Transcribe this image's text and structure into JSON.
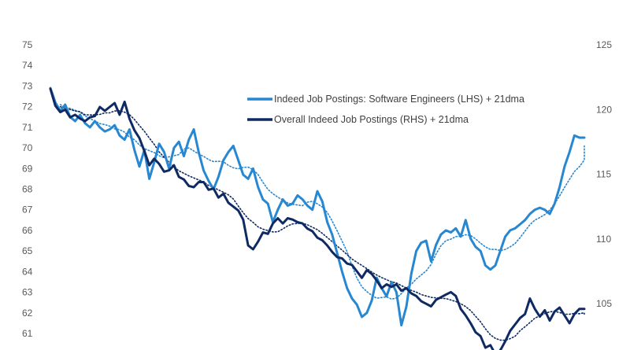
{
  "chart_data": {
    "type": "line",
    "title": "",
    "xlabel": "",
    "ylabel": "",
    "y_left": {
      "lim": [
        61,
        75
      ],
      "ticks": [
        61,
        62,
        63,
        64,
        65,
        66,
        67,
        68,
        69,
        70,
        71,
        72,
        73,
        74,
        75
      ]
    },
    "y_right": {
      "lim": [
        101,
        125
      ],
      "ticks": [
        105,
        110,
        115,
        120,
        125
      ]
    },
    "grid": false,
    "legend_position": "top-center",
    "x_count": 180,
    "series": [
      {
        "name": "Indeed Job Postings: Software Engineers (LHS) + 21dma",
        "axis": "left",
        "color": "#2787d0",
        "points": [
          [
            0,
            72.9
          ],
          [
            2,
            72.2
          ],
          [
            4,
            71.8
          ],
          [
            6,
            72.1
          ],
          [
            8,
            71.5
          ],
          [
            10,
            71.3
          ],
          [
            12,
            71.6
          ],
          [
            14,
            71.2
          ],
          [
            16,
            71.0
          ],
          [
            18,
            71.3
          ],
          [
            20,
            71.0
          ],
          [
            22,
            70.8
          ],
          [
            24,
            70.9
          ],
          [
            26,
            71.1
          ],
          [
            28,
            70.6
          ],
          [
            30,
            70.4
          ],
          [
            32,
            70.9
          ],
          [
            34,
            69.9
          ],
          [
            36,
            69.1
          ],
          [
            38,
            69.9
          ],
          [
            40,
            68.5
          ],
          [
            42,
            69.3
          ],
          [
            44,
            70.2
          ],
          [
            46,
            69.8
          ],
          [
            48,
            69.0
          ],
          [
            50,
            70.0
          ],
          [
            52,
            70.3
          ],
          [
            54,
            69.6
          ],
          [
            56,
            70.4
          ],
          [
            58,
            70.9
          ],
          [
            60,
            69.8
          ],
          [
            62,
            68.9
          ],
          [
            64,
            68.4
          ],
          [
            66,
            68.0
          ],
          [
            68,
            68.6
          ],
          [
            70,
            69.4
          ],
          [
            72,
            69.8
          ],
          [
            74,
            70.1
          ],
          [
            76,
            69.4
          ],
          [
            78,
            68.7
          ],
          [
            80,
            68.5
          ],
          [
            82,
            69.0
          ],
          [
            84,
            68.1
          ],
          [
            86,
            67.5
          ],
          [
            88,
            67.3
          ],
          [
            90,
            66.4
          ],
          [
            92,
            67.0
          ],
          [
            94,
            67.5
          ],
          [
            96,
            67.2
          ],
          [
            98,
            67.3
          ],
          [
            100,
            67.7
          ],
          [
            102,
            67.5
          ],
          [
            104,
            67.2
          ],
          [
            106,
            67.0
          ],
          [
            108,
            67.9
          ],
          [
            110,
            67.4
          ],
          [
            112,
            66.4
          ],
          [
            114,
            65.8
          ],
          [
            116,
            64.9
          ],
          [
            118,
            64.0
          ],
          [
            120,
            63.2
          ],
          [
            122,
            62.7
          ],
          [
            124,
            62.4
          ],
          [
            126,
            61.8
          ],
          [
            128,
            62.0
          ],
          [
            130,
            62.6
          ],
          [
            132,
            63.7
          ],
          [
            134,
            63.2
          ],
          [
            136,
            62.8
          ],
          [
            138,
            63.5
          ],
          [
            140,
            63.0
          ],
          [
            142,
            61.4
          ],
          [
            144,
            62.3
          ],
          [
            146,
            63.9
          ],
          [
            148,
            65.0
          ],
          [
            150,
            65.4
          ],
          [
            152,
            65.5
          ],
          [
            154,
            64.5
          ],
          [
            156,
            65.3
          ],
          [
            158,
            65.8
          ],
          [
            160,
            66.0
          ],
          [
            162,
            65.9
          ],
          [
            164,
            66.1
          ],
          [
            166,
            65.7
          ],
          [
            168,
            66.5
          ],
          [
            170,
            65.6
          ],
          [
            172,
            65.2
          ],
          [
            174,
            65.0
          ],
          [
            176,
            64.3
          ],
          [
            178,
            64.1
          ],
          [
            180,
            64.3
          ],
          [
            182,
            65.0
          ],
          [
            184,
            65.7
          ],
          [
            186,
            66.0
          ],
          [
            188,
            66.1
          ],
          [
            190,
            66.3
          ],
          [
            192,
            66.5
          ],
          [
            194,
            66.8
          ],
          [
            196,
            67.0
          ],
          [
            198,
            67.1
          ],
          [
            200,
            67.0
          ],
          [
            202,
            66.8
          ],
          [
            204,
            67.3
          ],
          [
            206,
            68.1
          ],
          [
            208,
            69.1
          ],
          [
            210,
            69.8
          ],
          [
            212,
            70.6
          ],
          [
            214,
            70.5
          ],
          [
            216,
            70.5
          ]
        ]
      },
      {
        "name": "Overall Indeed Job Postings (RHS) + 21dma",
        "axis": "right",
        "color": "#0f2a63",
        "points": [
          [
            0,
            121.6
          ],
          [
            2,
            120.3
          ],
          [
            4,
            119.8
          ],
          [
            6,
            120.0
          ],
          [
            8,
            119.4
          ],
          [
            10,
            119.6
          ],
          [
            12,
            119.3
          ],
          [
            14,
            119.1
          ],
          [
            16,
            119.4
          ],
          [
            18,
            119.5
          ],
          [
            20,
            120.2
          ],
          [
            22,
            119.9
          ],
          [
            24,
            120.2
          ],
          [
            26,
            120.5
          ],
          [
            28,
            119.6
          ],
          [
            30,
            120.6
          ],
          [
            32,
            119.3
          ],
          [
            34,
            118.4
          ],
          [
            36,
            117.8
          ],
          [
            38,
            116.8
          ],
          [
            40,
            115.7
          ],
          [
            42,
            116.2
          ],
          [
            44,
            115.8
          ],
          [
            46,
            115.2
          ],
          [
            48,
            115.3
          ],
          [
            50,
            115.7
          ],
          [
            52,
            114.8
          ],
          [
            54,
            114.6
          ],
          [
            56,
            114.1
          ],
          [
            58,
            114.0
          ],
          [
            60,
            114.4
          ],
          [
            62,
            114.4
          ],
          [
            64,
            113.8
          ],
          [
            66,
            113.9
          ],
          [
            68,
            113.2
          ],
          [
            70,
            113.5
          ],
          [
            72,
            112.8
          ],
          [
            74,
            112.5
          ],
          [
            76,
            112.2
          ],
          [
            78,
            111.5
          ],
          [
            80,
            109.5
          ],
          [
            82,
            109.2
          ],
          [
            84,
            109.8
          ],
          [
            86,
            110.5
          ],
          [
            88,
            110.4
          ],
          [
            90,
            111.2
          ],
          [
            92,
            111.6
          ],
          [
            94,
            111.2
          ],
          [
            96,
            111.6
          ],
          [
            98,
            111.5
          ],
          [
            100,
            111.3
          ],
          [
            102,
            111.2
          ],
          [
            104,
            110.8
          ],
          [
            106,
            110.6
          ],
          [
            108,
            110.1
          ],
          [
            110,
            109.9
          ],
          [
            112,
            109.5
          ],
          [
            114,
            109.0
          ],
          [
            116,
            108.6
          ],
          [
            118,
            108.5
          ],
          [
            120,
            108.1
          ],
          [
            122,
            108.0
          ],
          [
            124,
            107.5
          ],
          [
            126,
            107.0
          ],
          [
            128,
            107.6
          ],
          [
            130,
            107.3
          ],
          [
            132,
            106.8
          ],
          [
            134,
            106.2
          ],
          [
            136,
            106.5
          ],
          [
            138,
            106.3
          ],
          [
            140,
            106.5
          ],
          [
            142,
            106.0
          ],
          [
            144,
            106.2
          ],
          [
            146,
            105.8
          ],
          [
            148,
            105.6
          ],
          [
            150,
            105.2
          ],
          [
            152,
            105.0
          ],
          [
            154,
            104.8
          ],
          [
            156,
            105.3
          ],
          [
            158,
            105.5
          ],
          [
            160,
            105.7
          ],
          [
            162,
            105.9
          ],
          [
            164,
            105.6
          ],
          [
            166,
            104.6
          ],
          [
            168,
            104.1
          ],
          [
            170,
            103.5
          ],
          [
            172,
            102.8
          ],
          [
            174,
            102.5
          ],
          [
            176,
            101.6
          ],
          [
            178,
            101.8
          ],
          [
            180,
            101.1
          ],
          [
            182,
            101.4
          ],
          [
            184,
            102.1
          ],
          [
            186,
            102.9
          ],
          [
            188,
            103.4
          ],
          [
            190,
            103.9
          ],
          [
            192,
            104.2
          ],
          [
            194,
            105.4
          ],
          [
            196,
            104.6
          ],
          [
            198,
            104.0
          ],
          [
            200,
            104.5
          ],
          [
            202,
            103.7
          ],
          [
            204,
            104.4
          ],
          [
            206,
            104.7
          ],
          [
            208,
            104.1
          ],
          [
            210,
            103.5
          ],
          [
            212,
            104.2
          ],
          [
            214,
            104.6
          ],
          [
            216,
            104.6
          ]
        ]
      }
    ]
  }
}
